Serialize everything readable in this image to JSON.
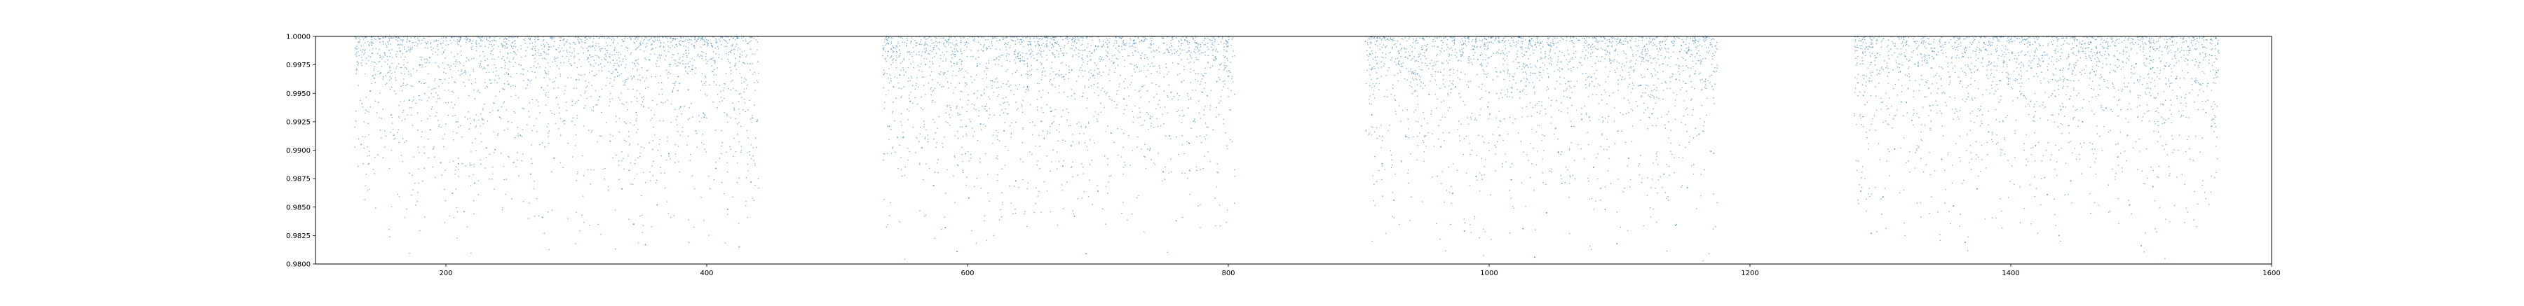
{
  "chart_data": {
    "type": "scatter",
    "title": "",
    "xlabel": "",
    "ylabel": "",
    "xlim": [
      100,
      1600
    ],
    "ylim": [
      0.98,
      1.0
    ],
    "grid": false,
    "legend": "none",
    "x_ticks": [
      200,
      400,
      600,
      800,
      1000,
      1200,
      1400,
      1600
    ],
    "x_tick_labels": [
      "200",
      "400",
      "600",
      "800",
      "1000",
      "1200",
      "1400",
      "1600"
    ],
    "y_ticks": [
      0.98,
      0.9825,
      0.985,
      0.9875,
      0.99,
      0.9925,
      0.995,
      0.9975,
      1.0
    ],
    "y_tick_labels": [
      "0.9800",
      "0.9825",
      "0.9850",
      "0.9875",
      "0.9900",
      "0.9925",
      "0.9950",
      "0.9975",
      "1.0000"
    ],
    "series": [
      {
        "color": "#1f77b4",
        "marker_size": 1,
        "dense_x_ranges": [
          [
            130,
            440
          ],
          [
            535,
            805
          ],
          [
            905,
            1175
          ],
          [
            1280,
            1560
          ]
        ],
        "x": [
          135,
          142,
          150,
          158,
          165,
          172,
          180,
          188,
          196,
          205,
          214,
          222,
          231,
          240,
          248,
          257,
          265,
          274,
          283,
          291,
          300,
          309,
          318,
          326,
          335,
          344,
          353,
          362,
          371,
          380,
          389,
          398,
          407,
          416,
          425,
          434,
          540,
          548,
          556,
          565,
          574,
          583,
          592,
          601,
          610,
          619,
          628,
          637,
          646,
          655,
          664,
          673,
          682,
          691,
          700,
          710,
          720,
          730,
          740,
          750,
          760,
          770,
          780,
          790,
          800,
          910,
          918,
          927,
          936,
          945,
          954,
          963,
          972,
          981,
          990,
          999,
          1008,
          1017,
          1026,
          1035,
          1044,
          1053,
          1062,
          1071,
          1080,
          1089,
          1098,
          1107,
          1116,
          1125,
          1134,
          1143,
          1152,
          1161,
          1170,
          1285,
          1293,
          1302,
          1311,
          1320,
          1329,
          1338,
          1347,
          1356,
          1365,
          1374,
          1383,
          1392,
          1401,
          1410,
          1419,
          1428,
          1437,
          1446,
          1455,
          1464,
          1473,
          1482,
          1491,
          1500,
          1509,
          1518,
          1527,
          1536,
          1545,
          1554
        ],
        "y": [
          0.9905,
          0.9952,
          0.9968,
          0.9931,
          0.9987,
          0.9944,
          0.9975,
          0.9918,
          0.9889,
          0.9862,
          0.9846,
          0.9871,
          0.9902,
          0.9935,
          0.9958,
          0.9913,
          0.9879,
          0.9841,
          0.9893,
          0.9926,
          0.9962,
          0.9981,
          0.9947,
          0.9908,
          0.9866,
          0.9835,
          0.9817,
          0.9852,
          0.9897,
          0.9938,
          0.9971,
          0.9929,
          0.9884,
          0.9848,
          0.9815,
          0.9872,
          0.9921,
          0.9966,
          0.9943,
          0.9902,
          0.9869,
          0.9832,
          0.9811,
          0.9858,
          0.9923,
          0.9961,
          0.9917,
          0.9873,
          0.9956,
          0.9992,
          0.9934,
          0.9886,
          0.9842,
          0.9809,
          0.9864,
          0.9915,
          0.9945,
          0.9973,
          0.9928,
          0.9881,
          0.9838,
          0.9906,
          0.9951,
          0.9982,
          0.9965,
          0.9931,
          0.9888,
          0.9856,
          0.9912,
          0.9967,
          0.9949,
          0.9903,
          0.9862,
          0.9829,
          0.9877,
          0.9938,
          0.9913,
          0.9874,
          0.9831,
          0.9806,
          0.9845,
          0.9898,
          0.9946,
          0.9927,
          0.9885,
          0.9848,
          0.9818,
          0.9893,
          0.9957,
          0.9932,
          0.9879,
          0.9834,
          0.9867,
          0.9914,
          0.9899,
          0.9864,
          0.9827,
          0.9859,
          0.9901,
          0.9942,
          0.9974,
          0.9939,
          0.9892,
          0.9851,
          0.9819,
          0.9866,
          0.9916,
          0.9961,
          0.9986,
          0.9948,
          0.9904,
          0.9861,
          0.9825,
          0.9873,
          0.9925,
          0.9969,
          0.9937,
          0.9894,
          0.9852,
          0.9816,
          0.9868,
          0.9924,
          0.9963,
          0.9991,
          0.9958,
          0.9921
        ]
      }
    ]
  }
}
